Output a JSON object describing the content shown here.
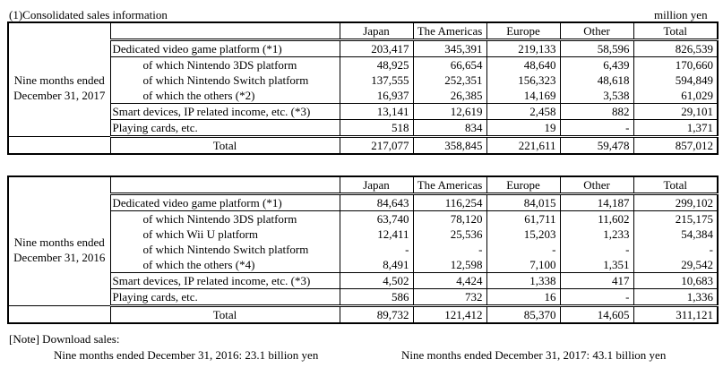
{
  "section_title": "(1)Consolidated sales information",
  "unit_label": "million yen",
  "columns": [
    "Japan",
    "The Americas",
    "Europe",
    "Other",
    "Total"
  ],
  "tables": [
    {
      "period": "Nine months ended December 31, 2017",
      "period_line1": "Nine months ended",
      "period_line2": "December 31, 2017",
      "rows": [
        {
          "label": "Dedicated video game platform (*1)",
          "values": [
            "203,417",
            "345,391",
            "219,133",
            "58,596",
            "826,539"
          ]
        },
        {
          "label": "of which Nintendo 3DS platform",
          "values": [
            "48,925",
            "66,654",
            "48,640",
            "6,439",
            "170,660"
          ]
        },
        {
          "label": "of which Nintendo Switch platform",
          "values": [
            "137,555",
            "252,351",
            "156,323",
            "48,618",
            "594,849"
          ]
        },
        {
          "label": "of which the others (*2)",
          "values": [
            "16,937",
            "26,385",
            "14,169",
            "3,538",
            "61,029"
          ]
        },
        {
          "label": "Smart devices, IP related income, etc. (*3)",
          "values": [
            "13,141",
            "12,619",
            "2,458",
            "882",
            "29,101"
          ]
        },
        {
          "label": "Playing cards, etc.",
          "values": [
            "518",
            "834",
            "19",
            "-",
            "1,371"
          ]
        },
        {
          "label": "Total",
          "values": [
            "217,077",
            "358,845",
            "221,611",
            "59,478",
            "857,012"
          ]
        }
      ]
    },
    {
      "period": "Nine months ended December 31, 2016",
      "period_line1": "Nine months ended",
      "period_line2": "December 31, 2016",
      "rows": [
        {
          "label": "Dedicated video game platform (*1)",
          "values": [
            "84,643",
            "116,254",
            "84,015",
            "14,187",
            "299,102"
          ]
        },
        {
          "label": "of which Nintendo 3DS platform",
          "values": [
            "63,740",
            "78,120",
            "61,711",
            "11,602",
            "215,175"
          ]
        },
        {
          "label": "of which Wii U platform",
          "values": [
            "12,411",
            "25,536",
            "15,203",
            "1,233",
            "54,384"
          ]
        },
        {
          "label": "of which Nintendo Switch platform",
          "values": [
            "-",
            "-",
            "-",
            "-",
            "-"
          ]
        },
        {
          "label": "of which the others (*4)",
          "values": [
            "8,491",
            "12,598",
            "7,100",
            "1,351",
            "29,542"
          ]
        },
        {
          "label": "Smart devices, IP related income, etc. (*3)",
          "values": [
            "4,502",
            "4,424",
            "1,338",
            "417",
            "10,683"
          ]
        },
        {
          "label": "Playing cards, etc.",
          "values": [
            "586",
            "732",
            "16",
            "-",
            "1,336"
          ]
        },
        {
          "label": "Total",
          "values": [
            "89,732",
            "121,412",
            "85,370",
            "14,605",
            "311,121"
          ]
        }
      ]
    }
  ],
  "note": {
    "title": "[Note] Download sales:",
    "line_2016": "Nine months ended December 31, 2016: 23.1 billion yen",
    "line_2017": "Nine months ended December 31, 2017: 43.1 billion yen"
  }
}
